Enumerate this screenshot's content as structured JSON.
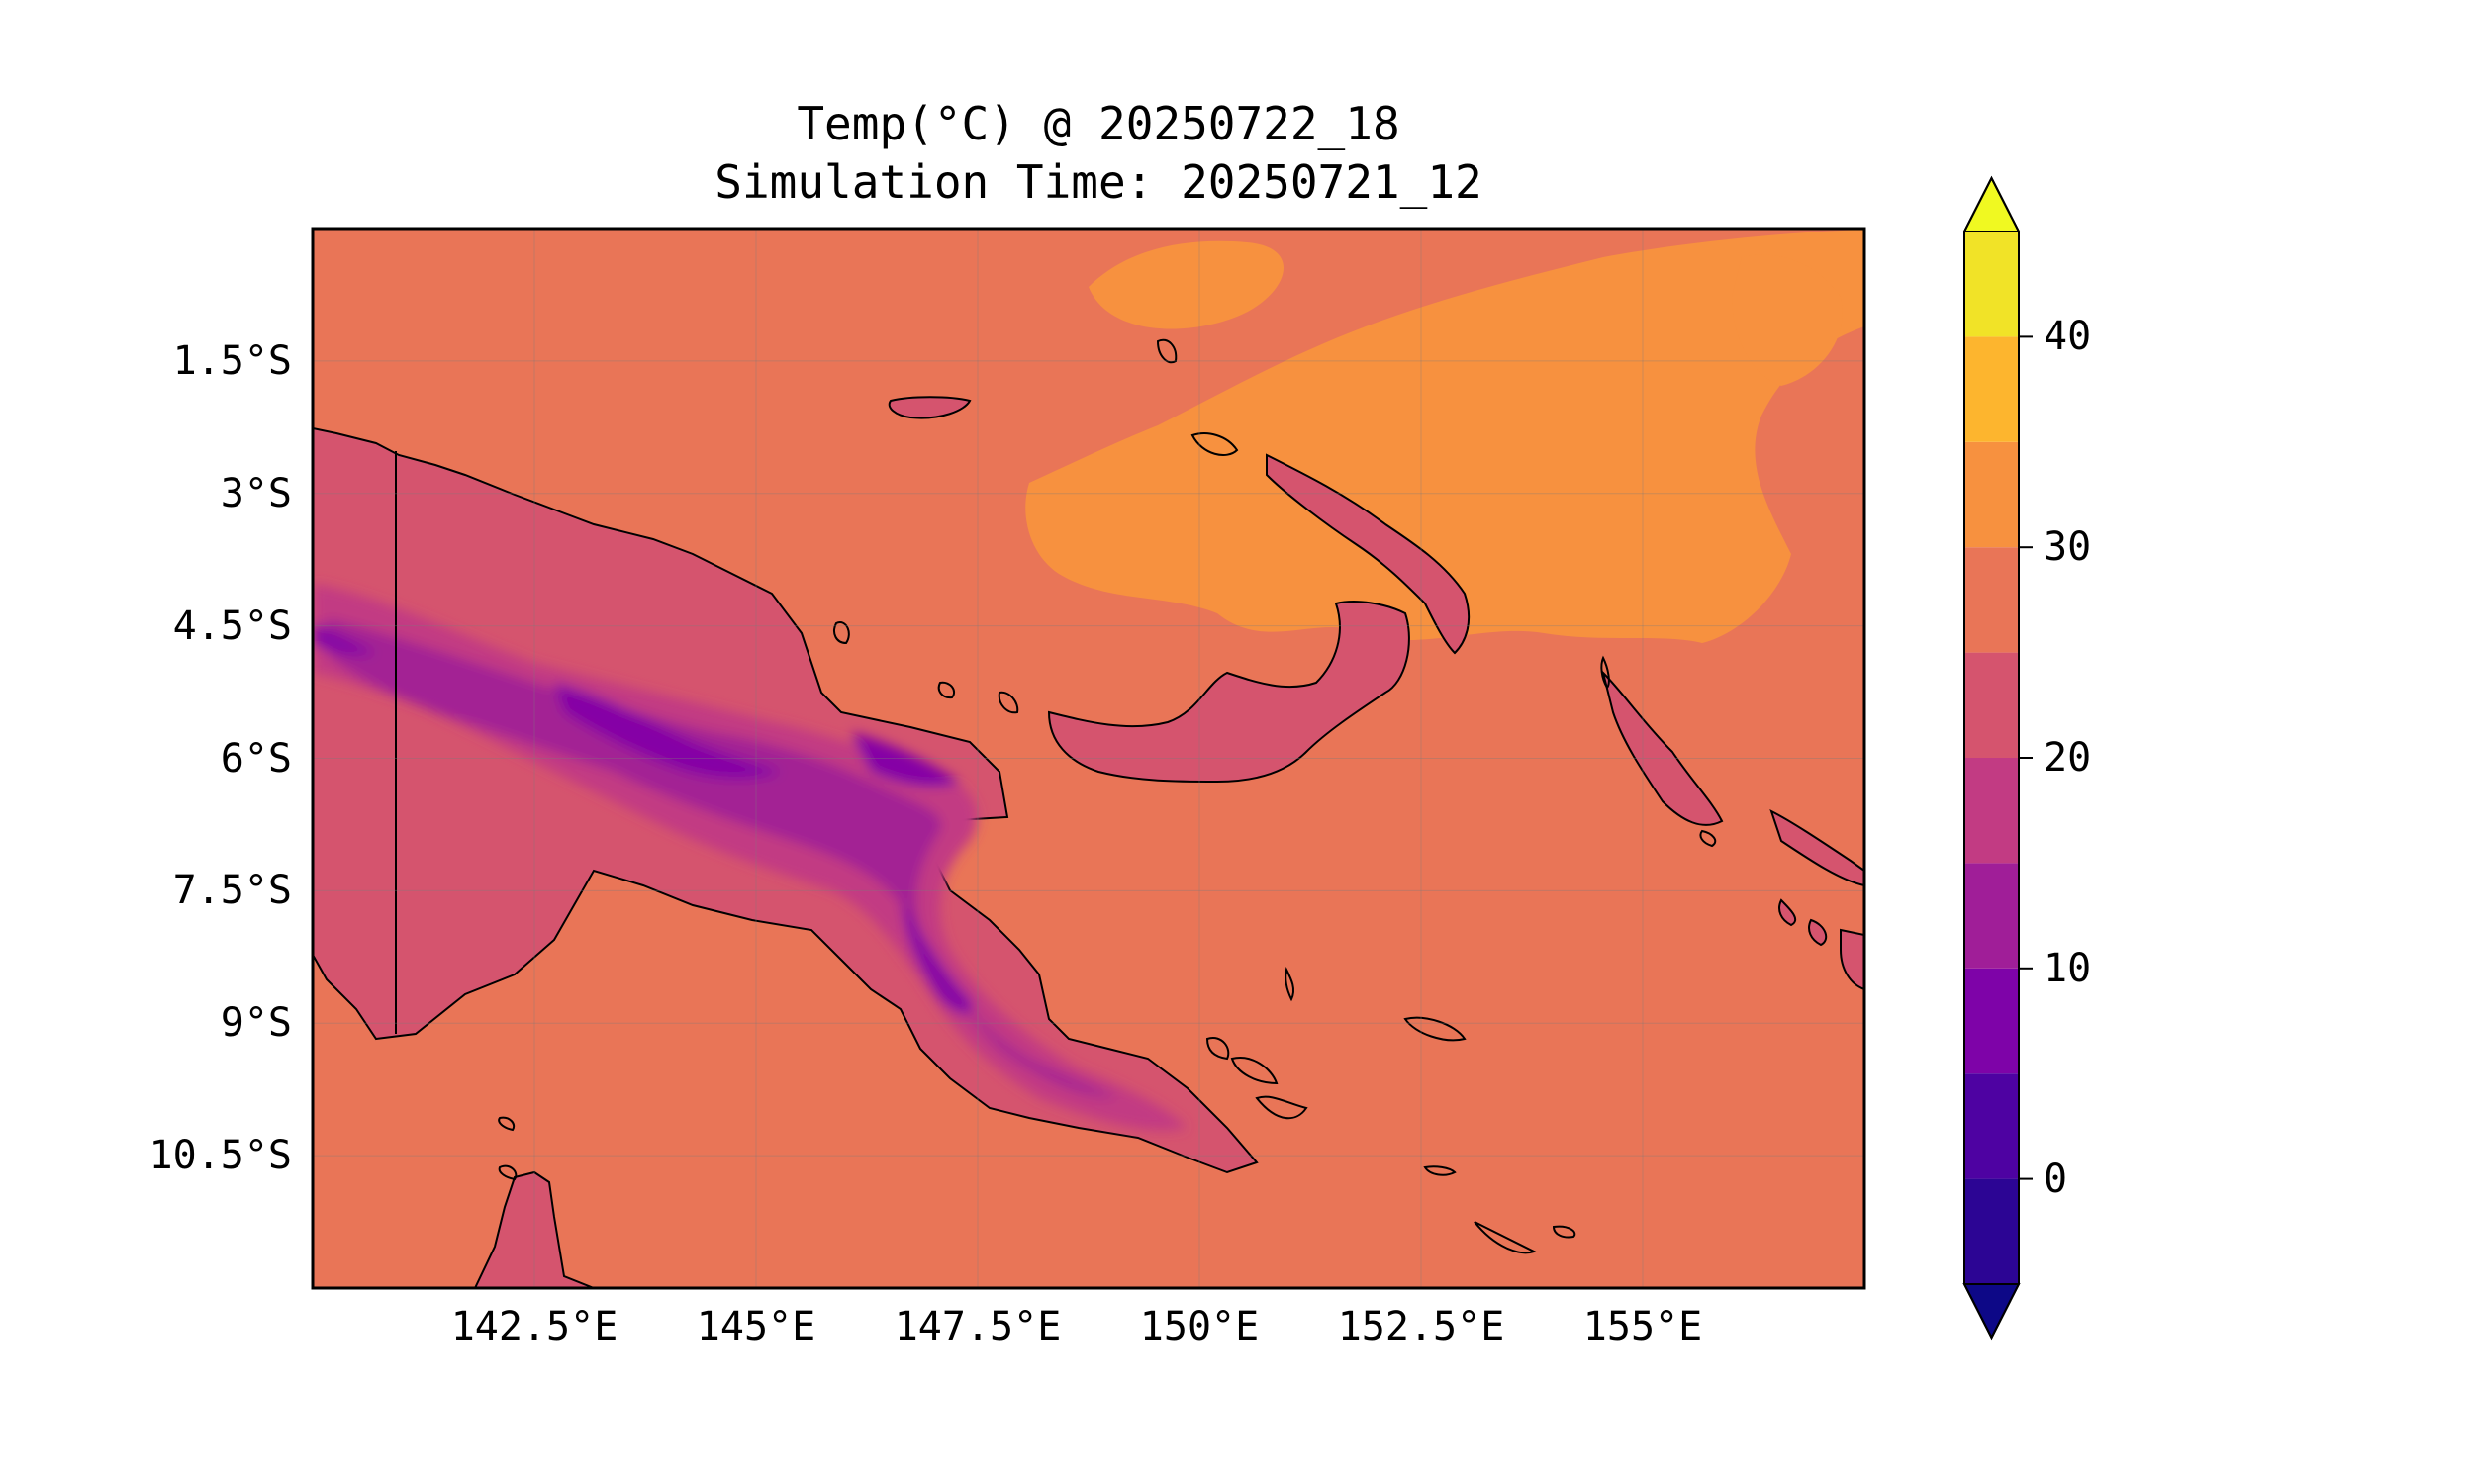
{
  "title": {
    "line1": "Temp(°C) @ 20250722_18",
    "line2": "Simulation Time: 20250721_12"
  },
  "map": {
    "region": "Papua New Guinea",
    "variable": "Temperature",
    "units": "°C",
    "extent_lon": [
      140.0,
      157.5
    ],
    "extent_lat": [
      -12.0,
      0.0
    ],
    "lat_ticks": [
      {
        "value": -1.5,
        "label": "1.5°S"
      },
      {
        "value": -3.0,
        "label": "3°S"
      },
      {
        "value": -4.5,
        "label": "4.5°S"
      },
      {
        "value": -6.0,
        "label": "6°S"
      },
      {
        "value": -7.5,
        "label": "7.5°S"
      },
      {
        "value": -9.0,
        "label": "9°S"
      },
      {
        "value": -10.5,
        "label": "10.5°S"
      }
    ],
    "lon_ticks": [
      {
        "value": 142.5,
        "label": "142.5°E"
      },
      {
        "value": 145.0,
        "label": "145°E"
      },
      {
        "value": 147.5,
        "label": "147.5°E"
      },
      {
        "value": 150.0,
        "label": "150°E"
      },
      {
        "value": 152.5,
        "label": "152.5°E"
      },
      {
        "value": 155.0,
        "label": "155°E"
      }
    ],
    "background_band": "#e97557",
    "warm_band": "#f7913f",
    "highland_bands": [
      "#d5546e",
      "#c23b83",
      "#a32494",
      "#8506a6"
    ]
  },
  "colorbar": {
    "levels": [
      -5,
      0,
      5,
      10,
      15,
      20,
      25,
      30,
      35,
      40,
      45
    ],
    "colors": [
      "#2c0594",
      "#4e02a2",
      "#7e03a8",
      "#a01e98",
      "#c23b83",
      "#d5546e",
      "#e97557",
      "#f7913f",
      "#fdb52e",
      "#f1e327"
    ],
    "under_color": "#0d0887",
    "over_color": "#f0f921",
    "ticks": [
      {
        "value": 0,
        "label": "0"
      },
      {
        "value": 10,
        "label": "10"
      },
      {
        "value": 20,
        "label": "20"
      },
      {
        "value": 30,
        "label": "30"
      },
      {
        "value": 40,
        "label": "40"
      }
    ]
  }
}
